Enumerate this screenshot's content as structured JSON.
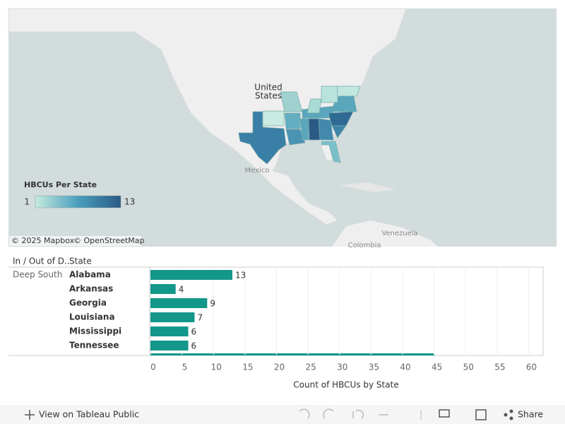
{
  "map": {
    "us_label": [
      "United",
      "States"
    ],
    "mexico_label": "Mexico",
    "venezuela_label": "Venezuela",
    "colombia_label": "Colombia",
    "attribution": [
      "© 2025 Mapbox",
      "© OpenStreetMap"
    ],
    "legend": {
      "title": "HBCUs Per State",
      "min": 1,
      "max": 13
    }
  },
  "chart_data": {
    "type": "bar",
    "orientation": "horizontal",
    "row_headers": [
      "In / Out of D..",
      "State"
    ],
    "group": "Deep South",
    "categories": [
      "Alabama",
      "Arkansas",
      "Georgia",
      "Louisiana",
      "Mississippi",
      "Tennessee"
    ],
    "values": [
      13,
      4,
      9,
      7,
      6,
      6
    ],
    "color": "#12978a",
    "xlim": [
      0,
      62.3
    ],
    "xticks": [
      0,
      5,
      10,
      15,
      20,
      25,
      30,
      35,
      40,
      45,
      50,
      55,
      60
    ],
    "grid": true,
    "x_label": "Count of HBCUs by State"
  },
  "toolbar": {
    "view": "View on Tableau Public",
    "share": "Share"
  }
}
